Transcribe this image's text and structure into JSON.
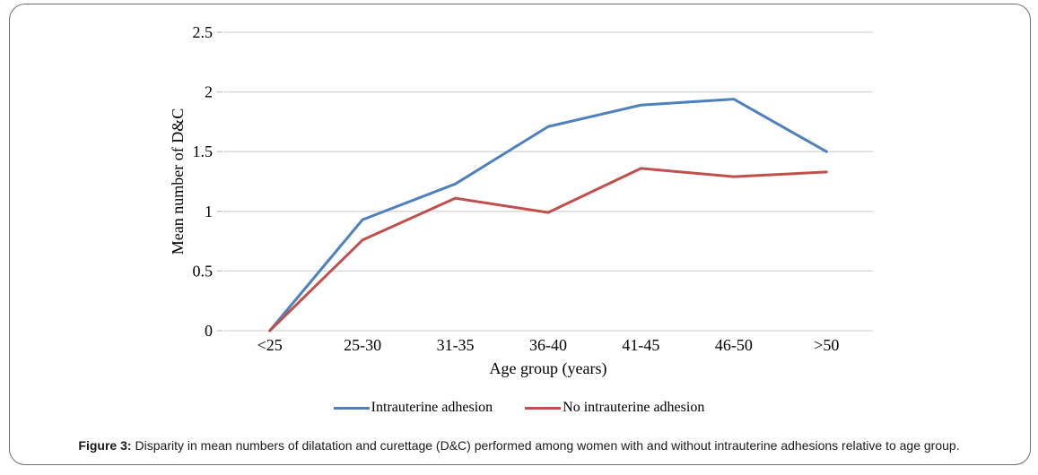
{
  "figure": {
    "caption_label": "Figure 3:",
    "caption_text": "Disparity in mean numbers of dilatation and curettage (D&C) performed among women with and without intrauterine adhesions relative to age group."
  },
  "chart_data": {
    "type": "line",
    "title": "",
    "xlabel": "Age group (years)",
    "ylabel": "Mean number of D&C",
    "categories": [
      "<25",
      "25-30",
      "31-35",
      "36-40",
      "41-45",
      "46-50",
      ">50"
    ],
    "series": [
      {
        "name": "Intrauterine adhesion",
        "color": "#4F81BD",
        "values": [
          0,
          0.93,
          1.23,
          1.71,
          1.89,
          1.94,
          1.5
        ]
      },
      {
        "name": "No intrauterine adhesion",
        "color": "#C0504D",
        "values": [
          0,
          0.76,
          1.11,
          0.99,
          1.36,
          1.29,
          1.33
        ]
      }
    ],
    "ylim": [
      0,
      2.5
    ],
    "yticks": [
      0,
      0.5,
      1,
      1.5,
      2,
      2.5
    ],
    "grid": "horizontal-only",
    "gridline_color": "#d6d6d6",
    "tick_color": "#c4c4c4",
    "line_width": 3,
    "legend_position": "bottom"
  }
}
